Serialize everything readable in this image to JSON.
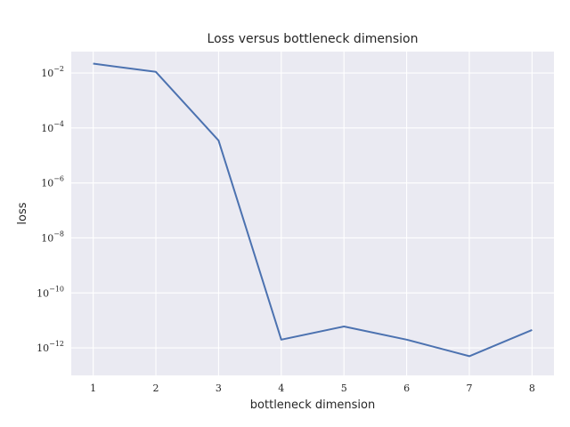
{
  "chart_data": {
    "type": "line",
    "title": "Loss versus bottleneck dimension",
    "xlabel": "bottleneck dimension",
    "ylabel": "loss",
    "yscale": "log",
    "grid": true,
    "legend": "none",
    "x": [
      1,
      2,
      3,
      4,
      5,
      6,
      7,
      8
    ],
    "xticks": [
      "1",
      "2",
      "3",
      "4",
      "5",
      "6",
      "7",
      "8"
    ],
    "yticks": [
      {
        "base": "10",
        "exp": "−2",
        "value": 0.01
      },
      {
        "base": "10",
        "exp": "−4",
        "value": 0.0001
      },
      {
        "base": "10",
        "exp": "−6",
        "value": 1e-06
      },
      {
        "base": "10",
        "exp": "−8",
        "value": 1e-08
      },
      {
        "base": "10",
        "exp": "−10",
        "value": 1e-10
      },
      {
        "base": "10",
        "exp": "−12",
        "value": 1e-12
      }
    ],
    "series": [
      {
        "values": [
          0.022,
          0.011,
          3.5e-05,
          2e-12,
          6e-12,
          2e-12,
          5e-13,
          4.5e-12
        ],
        "color": "#4c72b0"
      }
    ],
    "xlim": [
      0.65,
      8.35
    ],
    "ylim": [
      1e-13,
      0.06
    ],
    "colors": {
      "background": "#eaeaf2",
      "grid": "#ffffff",
      "text": "#262626"
    }
  }
}
